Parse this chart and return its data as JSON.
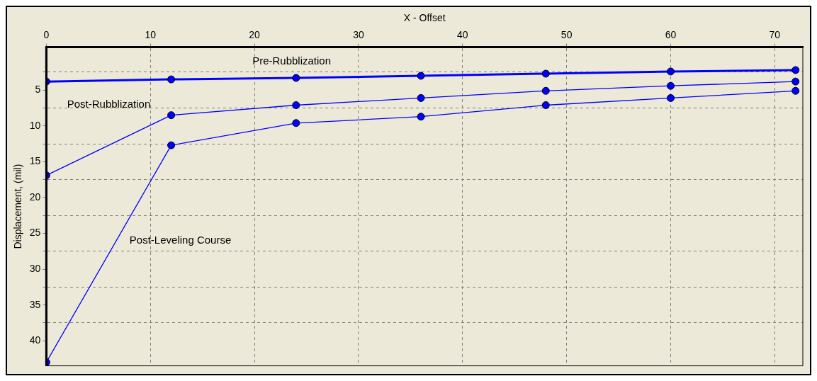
{
  "chart_data": {
    "type": "line",
    "xlabel": "X - Offset",
    "ylabel": "Displacement, (mil)",
    "x": [
      0,
      12,
      24,
      36,
      48,
      60,
      72
    ],
    "series": [
      {
        "name": "Pre-Rubblization",
        "color": "#0000ff",
        "values": [
          3.8,
          3.5,
          3.3,
          3.0,
          2.7,
          2.4,
          2.2
        ]
      },
      {
        "name": "Post-Rubblization",
        "color": "#0000ff",
        "values": [
          16.9,
          8.5,
          7.1,
          6.1,
          5.1,
          4.4,
          3.8
        ]
      },
      {
        "name": "Post-Leveling Course",
        "color": "#0000ff",
        "values": [
          43.0,
          12.7,
          9.6,
          8.7,
          7.1,
          6.1,
          5.1
        ]
      }
    ],
    "xlim": [
      0,
      72.7
    ],
    "xticks": [
      0,
      10,
      20,
      30,
      40,
      50,
      60,
      70
    ],
    "ylim": [
      43.5,
      -1
    ],
    "yticks": [
      {
        "value": 2.5,
        "label": null
      },
      5,
      {
        "value": 7.5,
        "label": null
      },
      10,
      {
        "value": 12.5,
        "label": null
      },
      15,
      {
        "value": 17.5,
        "label": null
      },
      20,
      {
        "value": 22.5,
        "label": null
      },
      25,
      {
        "value": 27.5,
        "label": null
      },
      30,
      {
        "value": 32.5,
        "label": null
      },
      35,
      {
        "value": 37.5,
        "label": null
      },
      40
    ],
    "grid": true,
    "legend": false,
    "marker": "circle",
    "line_style": "solid"
  }
}
